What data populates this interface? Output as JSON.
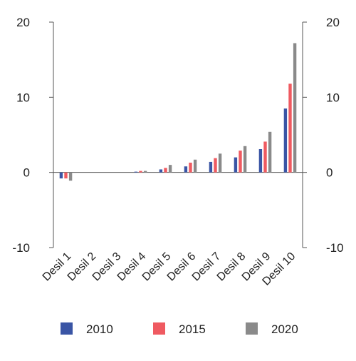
{
  "chart_data": {
    "type": "bar",
    "categories": [
      "Desil 1",
      "Desil 2",
      "Desil 3",
      "Desil 4",
      "Desil 5",
      "Desil 6",
      "Desil 7",
      "Desil 8",
      "Desil 9",
      "Desil 10"
    ],
    "series": [
      {
        "name": "2010",
        "color": "#3a55a5",
        "values": [
          -0.8,
          0,
          0,
          0.1,
          0.4,
          0.8,
          1.4,
          2.0,
          3.1,
          8.5
        ]
      },
      {
        "name": "2015",
        "color": "#ef5a61",
        "values": [
          -0.8,
          0,
          0,
          0.2,
          0.6,
          1.3,
          1.9,
          2.9,
          4.1,
          11.8
        ]
      },
      {
        "name": "2020",
        "color": "#8a8a8a",
        "values": [
          -1.1,
          0,
          0,
          0.2,
          1.0,
          1.7,
          2.5,
          3.5,
          5.4,
          17.2
        ]
      }
    ],
    "ylim": [
      -10,
      20
    ],
    "yticks": [
      "20",
      "10",
      "0",
      "-10"
    ],
    "ytick_values": [
      20,
      10,
      0,
      -10
    ],
    "right_axis": true,
    "grid": false,
    "legend_position": "bottom",
    "title": "",
    "xlabel": "",
    "ylabel": ""
  }
}
